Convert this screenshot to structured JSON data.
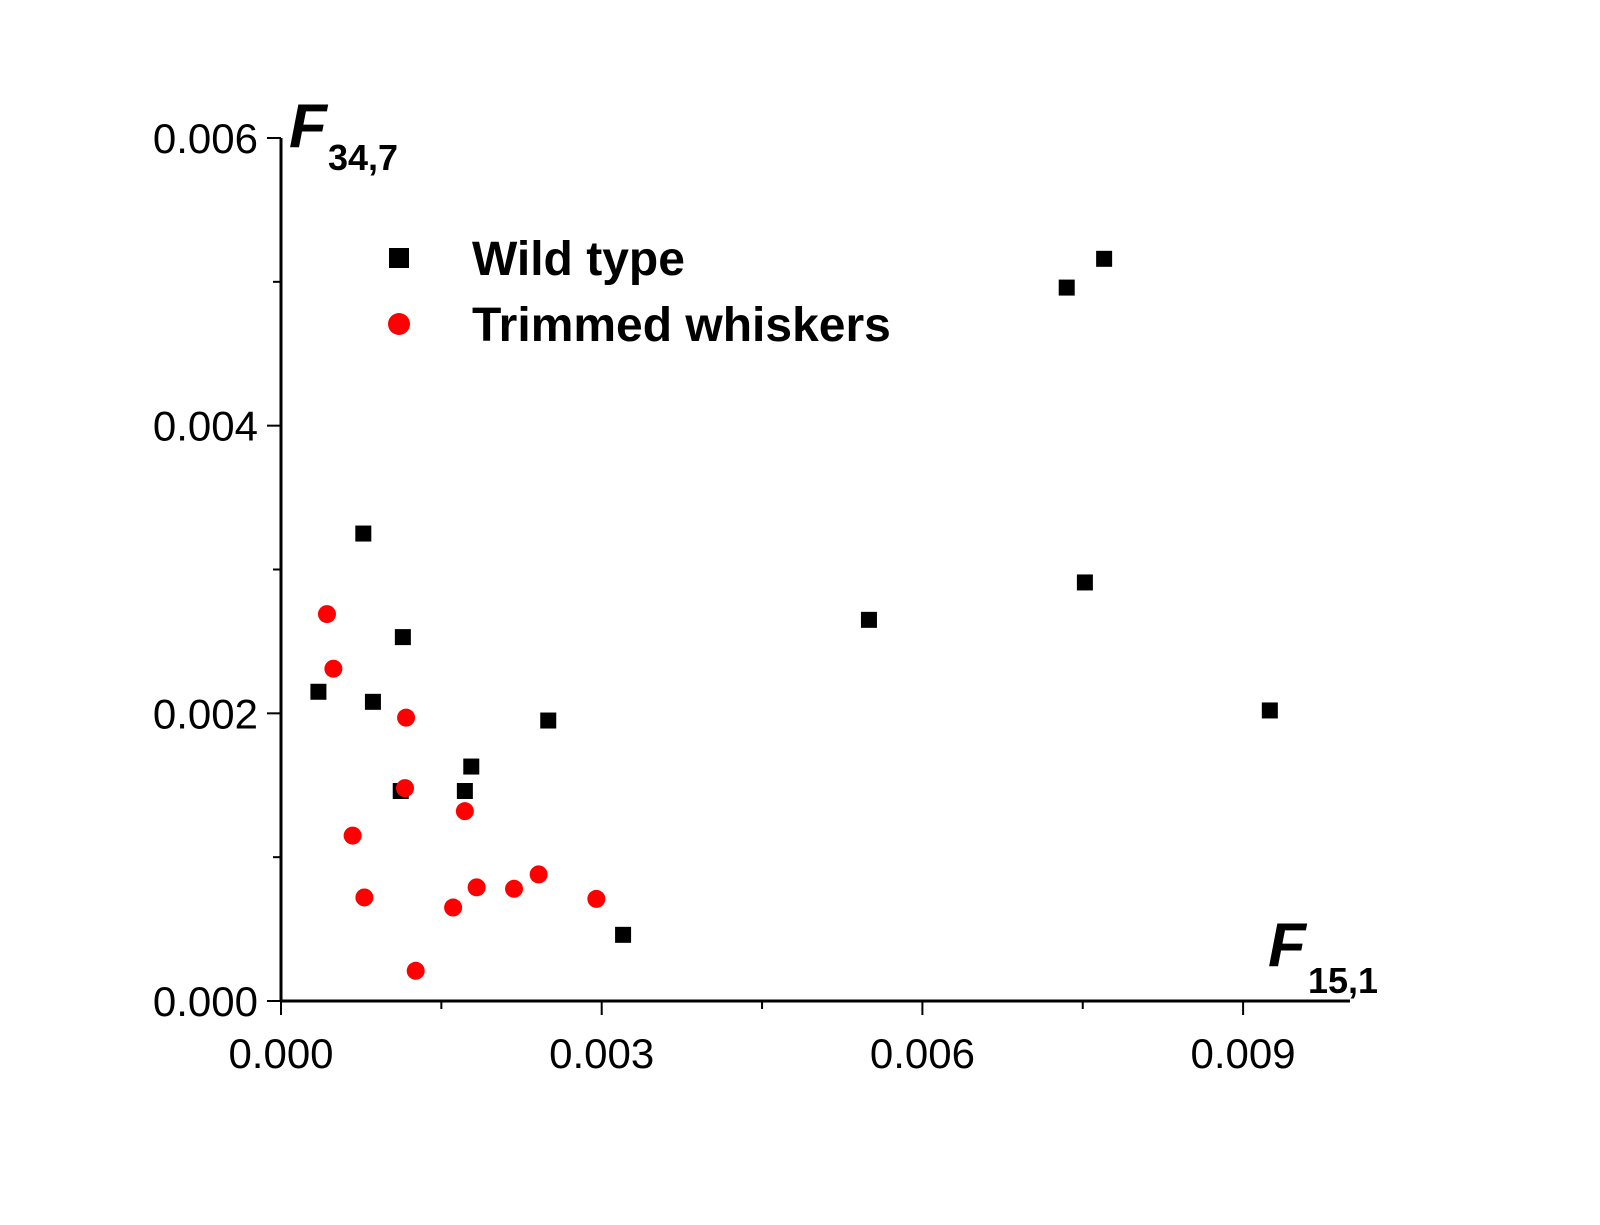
{
  "chart_data": {
    "type": "scatter",
    "title": "",
    "xlabel": {
      "main": "F",
      "sub": "15,1"
    },
    "ylabel": {
      "main": "F",
      "sub": "34,7"
    },
    "xlim": [
      0.0,
      0.01
    ],
    "ylim": [
      0.0,
      0.006
    ],
    "x_ticks": [
      "0.000",
      "0.003",
      "0.006",
      "0.009"
    ],
    "y_ticks": [
      "0.000",
      "0.002",
      "0.004",
      "0.006"
    ],
    "legend_position": "top-left",
    "grid": false,
    "series": [
      {
        "name": "Wild type",
        "marker": "square",
        "color": "#000000",
        "points": [
          {
            "x": 0.00035,
            "y": 0.00215
          },
          {
            "x": 0.00077,
            "y": 0.00325
          },
          {
            "x": 0.00086,
            "y": 0.00208
          },
          {
            "x": 0.00112,
            "y": 0.00146
          },
          {
            "x": 0.00114,
            "y": 0.00253
          },
          {
            "x": 0.00172,
            "y": 0.00146
          },
          {
            "x": 0.00178,
            "y": 0.00163
          },
          {
            "x": 0.0025,
            "y": 0.00195
          },
          {
            "x": 0.0032,
            "y": 0.00046
          },
          {
            "x": 0.0055,
            "y": 0.00265
          },
          {
            "x": 0.00735,
            "y": 0.00496
          },
          {
            "x": 0.00752,
            "y": 0.00291
          },
          {
            "x": 0.0077,
            "y": 0.00516
          },
          {
            "x": 0.00925,
            "y": 0.00202
          }
        ]
      },
      {
        "name": "Trimmed whiskers",
        "marker": "circle",
        "color": "#ff0000",
        "points": [
          {
            "x": 0.00043,
            "y": 0.00269
          },
          {
            "x": 0.00049,
            "y": 0.00231
          },
          {
            "x": 0.00067,
            "y": 0.00115
          },
          {
            "x": 0.00078,
            "y": 0.00072
          },
          {
            "x": 0.00116,
            "y": 0.00148
          },
          {
            "x": 0.00117,
            "y": 0.00197
          },
          {
            "x": 0.00126,
            "y": 0.00021
          },
          {
            "x": 0.00161,
            "y": 0.00065
          },
          {
            "x": 0.00172,
            "y": 0.00132
          },
          {
            "x": 0.00183,
            "y": 0.00079
          },
          {
            "x": 0.00218,
            "y": 0.00078
          },
          {
            "x": 0.00241,
            "y": 0.00088
          },
          {
            "x": 0.00295,
            "y": 0.00071
          }
        ]
      }
    ]
  }
}
